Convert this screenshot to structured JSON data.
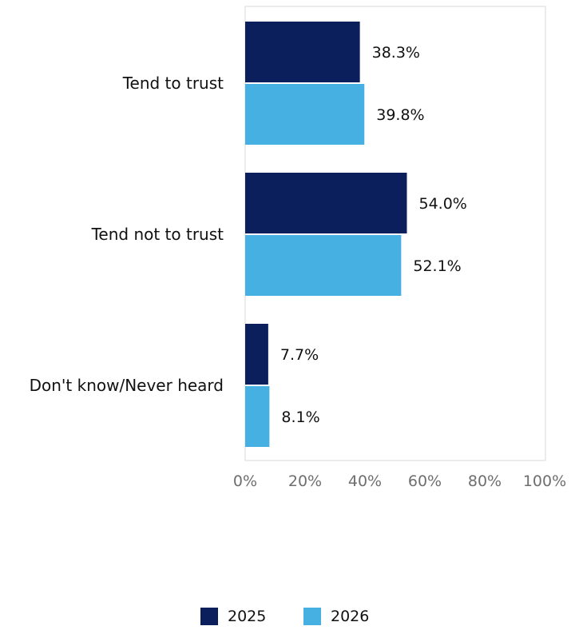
{
  "chart_data": {
    "type": "bar",
    "orientation": "horizontal",
    "categories": [
      "Tend to trust",
      "Tend not to trust",
      "Don't know/Never heard"
    ],
    "series": [
      {
        "name": "2025",
        "color": "#0b1f5c",
        "values": [
          38.3,
          54.0,
          7.7
        ],
        "labels": [
          "38.3%",
          "54.0%",
          "7.7%"
        ]
      },
      {
        "name": "2026",
        "color": "#46b0e2",
        "values": [
          39.8,
          52.1,
          8.1
        ],
        "labels": [
          "39.8%",
          "52.1%",
          "8.1%"
        ]
      }
    ],
    "xlim": [
      0,
      100
    ],
    "x_ticks": [
      "0%",
      "20%",
      "40%",
      "60%",
      "80%",
      "100%"
    ],
    "grid": false,
    "legend_position": "bottom"
  }
}
